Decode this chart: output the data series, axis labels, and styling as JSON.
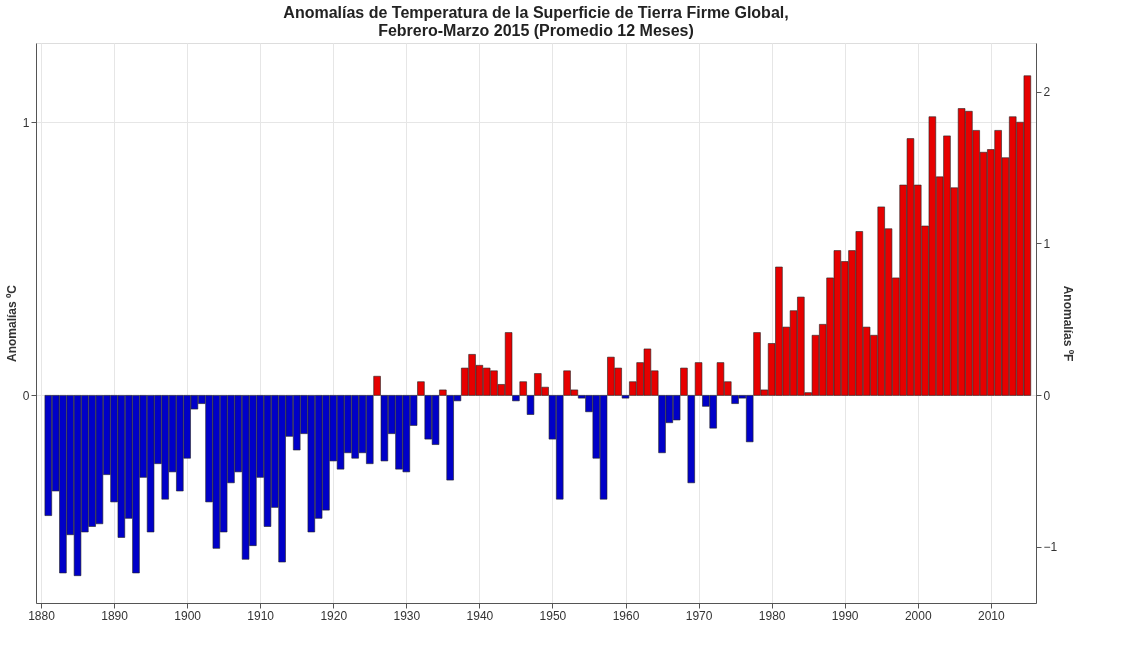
{
  "chart_data": {
    "type": "bar",
    "title": "Anomalías de Temperatura de la Superficie de Tierra Firme Global,\nFebrero-Marzo 2015 (Promedio 12 Meses)",
    "ylabel": "Anomalías ºC",
    "y2label": "Anomalías ºF",
    "x": [
      1881,
      1882,
      1883,
      1884,
      1885,
      1886,
      1887,
      1888,
      1889,
      1890,
      1891,
      1892,
      1893,
      1894,
      1895,
      1896,
      1897,
      1898,
      1899,
      1900,
      1901,
      1902,
      1903,
      1904,
      1905,
      1906,
      1907,
      1908,
      1909,
      1910,
      1911,
      1912,
      1913,
      1914,
      1915,
      1916,
      1917,
      1918,
      1919,
      1920,
      1921,
      1922,
      1923,
      1924,
      1925,
      1926,
      1927,
      1928,
      1929,
      1930,
      1931,
      1932,
      1933,
      1934,
      1935,
      1936,
      1937,
      1938,
      1939,
      1940,
      1941,
      1942,
      1943,
      1944,
      1945,
      1946,
      1947,
      1948,
      1949,
      1950,
      1951,
      1952,
      1953,
      1954,
      1955,
      1956,
      1957,
      1958,
      1959,
      1960,
      1961,
      1962,
      1963,
      1964,
      1965,
      1966,
      1967,
      1968,
      1969,
      1970,
      1971,
      1972,
      1973,
      1974,
      1975,
      1976,
      1977,
      1978,
      1979,
      1980,
      1981,
      1982,
      1983,
      1984,
      1985,
      1986,
      1987,
      1988,
      1989,
      1990,
      1991,
      1992,
      1993,
      1994,
      1995,
      1996,
      1997,
      1998,
      1999,
      2000,
      2001,
      2002,
      2003,
      2004,
      2005,
      2006,
      2007,
      2008,
      2009,
      2010,
      2011,
      2012,
      2013,
      2014,
      2015
    ],
    "values": [
      -0.44,
      -0.35,
      -0.65,
      -0.51,
      -0.66,
      -0.5,
      -0.48,
      -0.47,
      -0.29,
      -0.39,
      -0.52,
      -0.45,
      -0.65,
      -0.3,
      -0.5,
      -0.25,
      -0.38,
      -0.28,
      -0.35,
      -0.23,
      -0.05,
      -0.03,
      -0.39,
      -0.56,
      -0.5,
      -0.32,
      -0.28,
      -0.6,
      -0.55,
      -0.3,
      -0.48,
      -0.41,
      -0.61,
      -0.15,
      -0.2,
      -0.14,
      -0.5,
      -0.45,
      -0.42,
      -0.24,
      -0.27,
      -0.21,
      -0.23,
      -0.21,
      -0.25,
      0.07,
      -0.24,
      -0.14,
      -0.27,
      -0.28,
      -0.11,
      0.05,
      -0.16,
      -0.18,
      0.02,
      -0.31,
      -0.02,
      0.1,
      0.15,
      0.11,
      0.1,
      0.09,
      0.04,
      0.23,
      -0.02,
      0.05,
      -0.07,
      0.08,
      0.03,
      -0.16,
      -0.38,
      0.09,
      0.02,
      -0.01,
      -0.06,
      -0.23,
      -0.38,
      0.14,
      0.1,
      -0.01,
      0.05,
      0.12,
      0.17,
      0.09,
      -0.21,
      -0.1,
      -0.09,
      0.1,
      -0.32,
      0.12,
      -0.04,
      -0.12,
      0.12,
      0.05,
      -0.03,
      -0.01,
      -0.17,
      0.23,
      0.02,
      0.19,
      0.47,
      0.25,
      0.31,
      0.36,
      0.01,
      0.22,
      0.26,
      0.43,
      0.53,
      0.49,
      0.53,
      0.6,
      0.25,
      0.22,
      0.69,
      0.61,
      0.43,
      0.77,
      0.94,
      0.77,
      0.62,
      1.02,
      0.8,
      0.95,
      0.76,
      1.05,
      1.04,
      0.97,
      0.89,
      0.9,
      0.97,
      0.87,
      1.02,
      1.0,
      1.17
    ],
    "colors": [
      "#0000c8",
      "#0000c8",
      "#0000c8",
      "#0000c8",
      "#0000c8",
      "#0000c8",
      "#0000c8",
      "#0000c8",
      "#0000c8",
      "#0000c8",
      "#0000c8",
      "#0000c8",
      "#0000c8",
      "#0000c8",
      "#0000c8",
      "#0000c8",
      "#0000c8",
      "#0000c8",
      "#0000c8",
      "#0000c8",
      "#0000c8",
      "#0000c8",
      "#0000c8",
      "#0000c8",
      "#0000c8",
      "#0000c8",
      "#0000c8",
      "#0000c8",
      "#0000c8",
      "#0000c8",
      "#0000c8",
      "#0000c8",
      "#0000c8",
      "#0000c8",
      "#0000c8",
      "#0000c8",
      "#0000c8",
      "#0000c8",
      "#0000c8",
      "#0000c8",
      "#0000c8",
      "#0000c8",
      "#0000c8",
      "#0000c8",
      "#0000c8",
      "#e60000",
      "#0000c8",
      "#0000c8",
      "#0000c8",
      "#0000c8",
      "#0000c8",
      "#e60000",
      "#0000c8",
      "#0000c8",
      "#e60000",
      "#0000c8",
      "#0000c8",
      "#e60000",
      "#e60000",
      "#e60000",
      "#e60000",
      "#e60000",
      "#e60000",
      "#e60000",
      "#0000c8",
      "#e60000",
      "#0000c8",
      "#e60000",
      "#e60000",
      "#0000c8",
      "#0000c8",
      "#e60000",
      "#e60000",
      "#0000c8",
      "#0000c8",
      "#0000c8",
      "#0000c8",
      "#e60000",
      "#e60000",
      "#0000c8",
      "#e60000",
      "#e60000",
      "#e60000",
      "#e60000",
      "#0000c8",
      "#0000c8",
      "#0000c8",
      "#e60000",
      "#0000c8",
      "#e60000",
      "#0000c8",
      "#0000c8",
      "#e60000",
      "#e60000",
      "#0000c8",
      "#0000c8",
      "#0000c8",
      "#e60000",
      "#e60000",
      "#e60000",
      "#e60000",
      "#e60000",
      "#e60000",
      "#e60000",
      "#e60000",
      "#e60000",
      "#e60000",
      "#e60000",
      "#e60000",
      "#e60000",
      "#e60000",
      "#e60000",
      "#e60000",
      "#e60000",
      "#e60000",
      "#e60000",
      "#e60000",
      "#e60000",
      "#e60000",
      "#e60000",
      "#e60000",
      "#e60000",
      "#e60000",
      "#e60000",
      "#e60000",
      "#e60000",
      "#e60000",
      "#e60000",
      "#e60000",
      "#e60000",
      "#e60000",
      "#e60000",
      "#e60000",
      "#e60000",
      "#e60000"
    ],
    "xlim": [
      1880,
      2015.5
    ],
    "xticks": [
      1880,
      1890,
      1900,
      1910,
      1920,
      1930,
      1940,
      1950,
      1960,
      1970,
      1980,
      1990,
      2000,
      2010
    ],
    "ylim": [
      -0.76,
      1.29
    ],
    "yticks": [
      0,
      1
    ],
    "y2lim": [
      -1.37,
      2.32
    ],
    "y2ticks": [
      -1,
      0,
      1,
      2
    ],
    "grid": true
  }
}
